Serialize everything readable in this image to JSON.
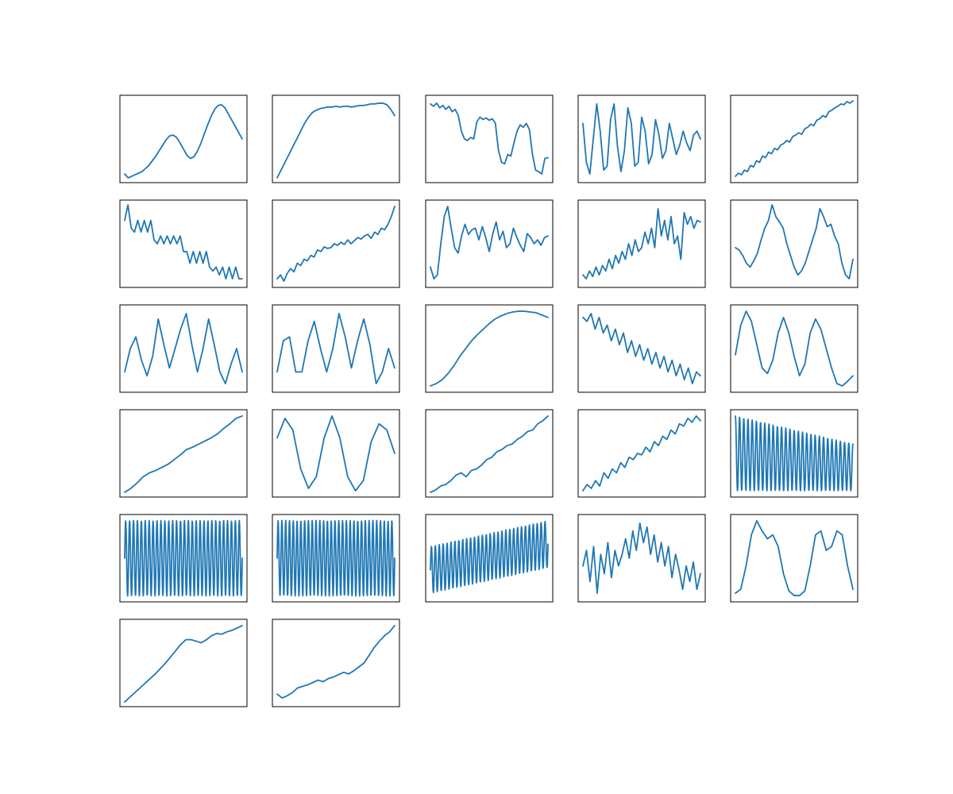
{
  "figure": {
    "background": "#ffffff",
    "line_color": "#1f77b4",
    "frame_color": "#000000"
  },
  "chart_data": [
    {
      "type": "line",
      "title": "",
      "xlabel": "",
      "ylabel": "",
      "axes_visible": false,
      "grid": false,
      "pattern": "two-bump",
      "series": [
        {
          "values": [
            0.05,
            0.0,
            0.02,
            0.04,
            0.06,
            0.08,
            0.12,
            0.16,
            0.22,
            0.28,
            0.35,
            0.42,
            0.49,
            0.54,
            0.55,
            0.52,
            0.45,
            0.37,
            0.29,
            0.25,
            0.27,
            0.34,
            0.44,
            0.56,
            0.68,
            0.79,
            0.88,
            0.93,
            0.94,
            0.9,
            0.82,
            0.74,
            0.66,
            0.58,
            0.5
          ]
        }
      ]
    },
    {
      "type": "line",
      "title": "",
      "xlabel": "",
      "ylabel": "",
      "axes_visible": false,
      "grid": false,
      "pattern": "rise-plateau",
      "series": [
        {
          "values": [
            0.0,
            0.1,
            0.2,
            0.3,
            0.4,
            0.5,
            0.6,
            0.7,
            0.78,
            0.84,
            0.87,
            0.89,
            0.9,
            0.91,
            0.91,
            0.92,
            0.91,
            0.92,
            0.92,
            0.91,
            0.92,
            0.93,
            0.93,
            0.94,
            0.95,
            0.95,
            0.96,
            0.96,
            0.94,
            0.88,
            0.8
          ]
        }
      ]
    },
    {
      "type": "line",
      "title": "",
      "xlabel": "",
      "ylabel": "",
      "axes_visible": false,
      "grid": false,
      "pattern": "noisy-steps",
      "series": [
        {
          "values": [
            0.95,
            0.92,
            0.96,
            0.9,
            0.93,
            0.88,
            0.92,
            0.85,
            0.88,
            0.8,
            0.6,
            0.5,
            0.48,
            0.52,
            0.5,
            0.72,
            0.78,
            0.75,
            0.77,
            0.74,
            0.76,
            0.7,
            0.35,
            0.2,
            0.18,
            0.3,
            0.28,
            0.45,
            0.6,
            0.68,
            0.65,
            0.7,
            0.62,
            0.3,
            0.1,
            0.08,
            0.05,
            0.25,
            0.26
          ]
        }
      ]
    },
    {
      "type": "line",
      "title": "",
      "xlabel": "",
      "ylabel": "",
      "axes_visible": false,
      "grid": false,
      "pattern": "damped-oscillation",
      "series": [
        {
          "values": [
            0.7,
            0.2,
            0.05,
            0.5,
            0.95,
            0.6,
            0.1,
            0.15,
            0.75,
            0.95,
            0.4,
            0.08,
            0.35,
            0.9,
            0.7,
            0.15,
            0.2,
            0.78,
            0.6,
            0.18,
            0.3,
            0.75,
            0.55,
            0.25,
            0.35,
            0.7,
            0.5,
            0.3,
            0.42,
            0.6,
            0.45,
            0.35,
            0.55,
            0.6,
            0.5
          ]
        }
      ]
    },
    {
      "type": "line",
      "title": "",
      "xlabel": "",
      "ylabel": "",
      "axes_visible": false,
      "grid": false,
      "pattern": "noisy-linear-rise",
      "series": [
        {
          "values": [
            0.02,
            0.06,
            0.04,
            0.1,
            0.08,
            0.16,
            0.14,
            0.22,
            0.2,
            0.28,
            0.26,
            0.33,
            0.31,
            0.38,
            0.36,
            0.42,
            0.44,
            0.48,
            0.46,
            0.53,
            0.55,
            0.58,
            0.56,
            0.63,
            0.65,
            0.69,
            0.67,
            0.74,
            0.76,
            0.8,
            0.78,
            0.85,
            0.87,
            0.9,
            0.92,
            0.95,
            0.94,
            0.98,
            0.96,
            0.99
          ]
        }
      ]
    },
    {
      "type": "line",
      "title": "",
      "xlabel": "",
      "ylabel": "",
      "axes_visible": false,
      "grid": false,
      "pattern": "descending-binary-jumps",
      "series": [
        {
          "values": [
            0.8,
            1.0,
            0.7,
            0.65,
            0.8,
            0.65,
            0.8,
            0.65,
            0.8,
            0.55,
            0.5,
            0.6,
            0.5,
            0.6,
            0.5,
            0.6,
            0.5,
            0.6,
            0.4,
            0.4,
            0.25,
            0.4,
            0.25,
            0.4,
            0.25,
            0.4,
            0.2,
            0.15,
            0.2,
            0.1,
            0.2,
            0.05,
            0.2,
            0.05,
            0.2,
            0.05,
            0.05
          ]
        }
      ]
    },
    {
      "type": "line",
      "title": "",
      "xlabel": "",
      "ylabel": "",
      "axes_visible": false,
      "grid": false,
      "pattern": "noisy-rise-uptick",
      "series": [
        {
          "values": [
            0.05,
            0.1,
            0.02,
            0.12,
            0.18,
            0.14,
            0.25,
            0.22,
            0.3,
            0.28,
            0.35,
            0.33,
            0.42,
            0.4,
            0.46,
            0.44,
            0.45,
            0.5,
            0.48,
            0.52,
            0.49,
            0.55,
            0.5,
            0.54,
            0.58,
            0.56,
            0.6,
            0.62,
            0.57,
            0.65,
            0.62,
            0.7,
            0.68,
            0.75,
            0.85,
            0.98
          ]
        }
      ]
    },
    {
      "type": "line",
      "title": "",
      "xlabel": "",
      "ylabel": "",
      "axes_visible": false,
      "grid": false,
      "pattern": "spike-then-noise",
      "series": [
        {
          "values": [
            0.2,
            0.05,
            0.1,
            0.5,
            0.85,
            0.98,
            0.7,
            0.45,
            0.38,
            0.6,
            0.75,
            0.62,
            0.68,
            0.7,
            0.55,
            0.72,
            0.58,
            0.4,
            0.62,
            0.78,
            0.55,
            0.66,
            0.45,
            0.5,
            0.7,
            0.58,
            0.48,
            0.4,
            0.63,
            0.58,
            0.5,
            0.55,
            0.48,
            0.58,
            0.6
          ]
        }
      ]
    },
    {
      "type": "line",
      "title": "",
      "xlabel": "",
      "ylabel": "",
      "axes_visible": false,
      "grid": false,
      "pattern": "noisy-rise-volatile",
      "series": [
        {
          "values": [
            0.1,
            0.05,
            0.15,
            0.08,
            0.2,
            0.1,
            0.22,
            0.15,
            0.3,
            0.18,
            0.35,
            0.25,
            0.4,
            0.3,
            0.5,
            0.35,
            0.55,
            0.4,
            0.45,
            0.65,
            0.5,
            0.7,
            0.45,
            0.95,
            0.6,
            0.8,
            0.55,
            0.85,
            0.5,
            0.6,
            0.3,
            0.9,
            0.75,
            0.85,
            0.7,
            0.8,
            0.78
          ]
        }
      ]
    },
    {
      "type": "line",
      "title": "",
      "xlabel": "",
      "ylabel": "",
      "axes_visible": false,
      "grid": false,
      "pattern": "periodic-noisy-peaks",
      "series": [
        {
          "values": [
            0.45,
            0.42,
            0.35,
            0.25,
            0.2,
            0.28,
            0.38,
            0.55,
            0.7,
            0.8,
            1.0,
            0.85,
            0.78,
            0.7,
            0.5,
            0.35,
            0.2,
            0.1,
            0.15,
            0.25,
            0.4,
            0.55,
            0.7,
            0.95,
            0.85,
            0.72,
            0.75,
            0.6,
            0.5,
            0.25,
            0.1,
            0.05,
            0.3
          ]
        }
      ]
    },
    {
      "type": "line",
      "title": "",
      "xlabel": "",
      "ylabel": "",
      "axes_visible": false,
      "grid": false,
      "pattern": "triangle-waves",
      "series": [
        {
          "values": [
            0.2,
            0.5,
            0.65,
            0.35,
            0.15,
            0.4,
            0.88,
            0.55,
            0.25,
            0.5,
            0.75,
            0.95,
            0.55,
            0.2,
            0.5,
            0.88,
            0.55,
            0.2,
            0.05,
            0.3,
            0.5,
            0.2
          ]
        }
      ]
    },
    {
      "type": "line",
      "title": "",
      "xlabel": "",
      "ylabel": "",
      "axes_visible": false,
      "grid": false,
      "pattern": "triangle-waves",
      "series": [
        {
          "values": [
            0.2,
            0.6,
            0.65,
            0.2,
            0.2,
            0.6,
            0.85,
            0.5,
            0.2,
            0.5,
            0.95,
            0.65,
            0.25,
            0.6,
            0.88,
            0.55,
            0.05,
            0.2,
            0.5,
            0.25
          ]
        }
      ]
    },
    {
      "type": "line",
      "title": "",
      "xlabel": "",
      "ylabel": "",
      "axes_visible": false,
      "grid": false,
      "pattern": "smooth-saturating",
      "series": [
        {
          "values": [
            0.02,
            0.05,
            0.1,
            0.18,
            0.28,
            0.4,
            0.5,
            0.6,
            0.68,
            0.75,
            0.82,
            0.88,
            0.92,
            0.95,
            0.97,
            0.98,
            0.98,
            0.97,
            0.96,
            0.93,
            0.9
          ]
        }
      ]
    },
    {
      "type": "line",
      "title": "",
      "xlabel": "",
      "ylabel": "",
      "axes_visible": false,
      "grid": false,
      "pattern": "noisy-decline",
      "series": [
        {
          "values": [
            0.9,
            0.85,
            0.95,
            0.75,
            0.9,
            0.7,
            0.8,
            0.6,
            0.75,
            0.55,
            0.7,
            0.45,
            0.6,
            0.4,
            0.55,
            0.35,
            0.5,
            0.3,
            0.45,
            0.25,
            0.4,
            0.2,
            0.35,
            0.15,
            0.3,
            0.1,
            0.25,
            0.05,
            0.2,
            0.15
          ]
        }
      ]
    },
    {
      "type": "line",
      "title": "",
      "xlabel": "",
      "ylabel": "",
      "axes_visible": false,
      "grid": false,
      "pattern": "oscillation-decay",
      "series": [
        {
          "values": [
            0.42,
            0.8,
            0.98,
            0.85,
            0.55,
            0.25,
            0.18,
            0.35,
            0.7,
            0.9,
            0.7,
            0.4,
            0.15,
            0.3,
            0.7,
            0.88,
            0.75,
            0.5,
            0.25,
            0.05,
            0.02,
            0.08,
            0.15
          ]
        }
      ]
    },
    {
      "type": "line",
      "title": "",
      "xlabel": "",
      "ylabel": "",
      "axes_visible": false,
      "grid": false,
      "pattern": "smooth-linear-rise",
      "series": [
        {
          "values": [
            0.0,
            0.05,
            0.12,
            0.2,
            0.25,
            0.28,
            0.32,
            0.36,
            0.42,
            0.48,
            0.55,
            0.58,
            0.62,
            0.66,
            0.7,
            0.75,
            0.82,
            0.88,
            0.95,
            0.98
          ]
        }
      ]
    },
    {
      "type": "line",
      "title": "",
      "xlabel": "",
      "ylabel": "",
      "axes_visible": false,
      "grid": false,
      "pattern": "sinusoid",
      "series": [
        {
          "values": [
            0.7,
            0.95,
            0.8,
            0.3,
            0.05,
            0.2,
            0.7,
            0.98,
            0.7,
            0.2,
            0.02,
            0.15,
            0.65,
            0.88,
            0.8,
            0.5
          ]
        }
      ]
    },
    {
      "type": "line",
      "title": "",
      "xlabel": "",
      "ylabel": "",
      "axes_visible": false,
      "grid": false,
      "pattern": "stepped-noisy-rise",
      "series": [
        {
          "values": [
            0.0,
            0.03,
            0.08,
            0.1,
            0.15,
            0.22,
            0.25,
            0.2,
            0.28,
            0.3,
            0.35,
            0.42,
            0.45,
            0.52,
            0.55,
            0.6,
            0.62,
            0.68,
            0.72,
            0.78,
            0.8,
            0.88,
            0.92,
            0.98
          ]
        }
      ]
    },
    {
      "type": "line",
      "title": "",
      "xlabel": "",
      "ylabel": "",
      "axes_visible": false,
      "grid": false,
      "pattern": "noisy-linear-rise",
      "series": [
        {
          "values": [
            0.02,
            0.1,
            0.05,
            0.15,
            0.08,
            0.25,
            0.18,
            0.3,
            0.25,
            0.38,
            0.32,
            0.45,
            0.42,
            0.5,
            0.48,
            0.58,
            0.52,
            0.65,
            0.6,
            0.72,
            0.68,
            0.8,
            0.75,
            0.88,
            0.85,
            0.95,
            0.9,
            0.98,
            0.92
          ]
        }
      ]
    },
    {
      "type": "line",
      "title": "",
      "xlabel": "",
      "ylabel": "",
      "axes_visible": false,
      "grid": false,
      "pattern": "high-freq-decaying-amplitude",
      "frequency": 28,
      "amplitude_start": 0.98,
      "amplitude_end": 0.62,
      "center_start": 0.45,
      "center_end": 0.35
    },
    {
      "type": "line",
      "title": "",
      "xlabel": "",
      "ylabel": "",
      "axes_visible": false,
      "grid": false,
      "pattern": "high-freq-constant",
      "frequency": 30,
      "amplitude": 0.97,
      "center": 0.5
    },
    {
      "type": "line",
      "title": "",
      "xlabel": "",
      "ylabel": "",
      "axes_visible": false,
      "grid": false,
      "pattern": "high-freq-constant",
      "frequency": 31,
      "amplitude": 0.97,
      "center": 0.5
    },
    {
      "type": "line",
      "title": "",
      "xlabel": "",
      "ylabel": "",
      "axes_visible": false,
      "grid": false,
      "pattern": "high-freq-rising-trend",
      "frequency": 30,
      "amplitude": 0.3,
      "center_start": 0.35,
      "center_end": 0.68
    },
    {
      "type": "line",
      "title": "",
      "xlabel": "",
      "ylabel": "",
      "axes_visible": false,
      "grid": false,
      "pattern": "volatile-noise",
      "series": [
        {
          "values": [
            0.4,
            0.6,
            0.2,
            0.65,
            0.05,
            0.55,
            0.3,
            0.7,
            0.25,
            0.6,
            0.4,
            0.55,
            0.75,
            0.5,
            0.85,
            0.6,
            0.95,
            0.7,
            0.9,
            0.55,
            0.8,
            0.45,
            0.7,
            0.4,
            0.65,
            0.25,
            0.55,
            0.35,
            0.1,
            0.4,
            0.2,
            0.45,
            0.1,
            0.3
          ]
        }
      ]
    },
    {
      "type": "line",
      "title": "",
      "xlabel": "",
      "ylabel": "",
      "axes_visible": false,
      "grid": false,
      "pattern": "double-hump-pairs",
      "series": [
        {
          "values": [
            0.05,
            0.1,
            0.4,
            0.8,
            0.98,
            0.85,
            0.75,
            0.8,
            0.65,
            0.3,
            0.08,
            0.02,
            0.02,
            0.08,
            0.4,
            0.8,
            0.85,
            0.6,
            0.65,
            0.85,
            0.8,
            0.4,
            0.1
          ]
        }
      ]
    },
    {
      "type": "line",
      "title": "",
      "xlabel": "",
      "ylabel": "",
      "axes_visible": false,
      "grid": false,
      "pattern": "rise-then-flatten",
      "series": [
        {
          "values": [
            0.0,
            0.06,
            0.12,
            0.18,
            0.24,
            0.3,
            0.36,
            0.43,
            0.5,
            0.58,
            0.66,
            0.74,
            0.8,
            0.8,
            0.78,
            0.76,
            0.8,
            0.85,
            0.88,
            0.87,
            0.9,
            0.92,
            0.95,
            0.98
          ]
        }
      ]
    },
    {
      "type": "line",
      "title": "",
      "xlabel": "",
      "ylabel": "",
      "axes_visible": false,
      "grid": false,
      "pattern": "slow-rise-then-jump",
      "series": [
        {
          "values": [
            0.1,
            0.05,
            0.08,
            0.12,
            0.18,
            0.2,
            0.22,
            0.25,
            0.28,
            0.26,
            0.3,
            0.32,
            0.35,
            0.38,
            0.36,
            0.4,
            0.45,
            0.5,
            0.6,
            0.7,
            0.78,
            0.85,
            0.9,
            0.98
          ]
        }
      ]
    }
  ]
}
